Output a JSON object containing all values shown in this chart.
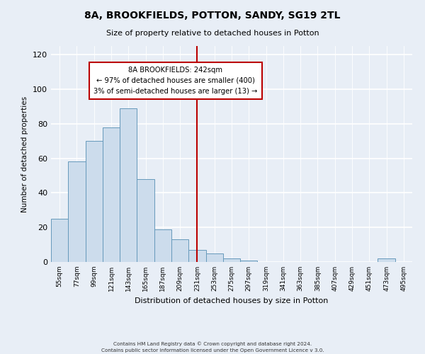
{
  "title": "8A, BROOKFIELDS, POTTON, SANDY, SG19 2TL",
  "subtitle": "Size of property relative to detached houses in Potton",
  "xlabel": "Distribution of detached houses by size in Potton",
  "ylabel": "Number of detached properties",
  "bar_color": "#ccdcec",
  "bar_edge_color": "#6699bb",
  "background_color": "#e8eef6",
  "bin_labels": [
    "55sqm",
    "77sqm",
    "99sqm",
    "121sqm",
    "143sqm",
    "165sqm",
    "187sqm",
    "209sqm",
    "231sqm",
    "253sqm",
    "275sqm",
    "297sqm",
    "319sqm",
    "341sqm",
    "363sqm",
    "385sqm",
    "407sqm",
    "429sqm",
    "451sqm",
    "473sqm",
    "495sqm"
  ],
  "bin_edges": [
    55,
    77,
    99,
    121,
    143,
    165,
    187,
    209,
    231,
    253,
    275,
    297,
    319,
    341,
    363,
    385,
    407,
    429,
    451,
    473,
    495,
    517
  ],
  "bar_heights": [
    25,
    58,
    70,
    78,
    89,
    48,
    19,
    13,
    7,
    5,
    2,
    1,
    0,
    0,
    0,
    0,
    0,
    0,
    0,
    2,
    0
  ],
  "ylim": [
    0,
    125
  ],
  "yticks": [
    0,
    20,
    40,
    60,
    80,
    100,
    120
  ],
  "vline_x": 242,
  "vline_color": "#bb0000",
  "annotation_title": "8A BROOKFIELDS: 242sqm",
  "annotation_line1": "← 97% of detached houses are smaller (400)",
  "annotation_line2": "3% of semi-detached houses are larger (13) →",
  "annotation_box_color": "#ffffff",
  "annotation_box_edge": "#bb0000",
  "footer_line1": "Contains HM Land Registry data © Crown copyright and database right 2024.",
  "footer_line2": "Contains public sector information licensed under the Open Government Licence v 3.0."
}
